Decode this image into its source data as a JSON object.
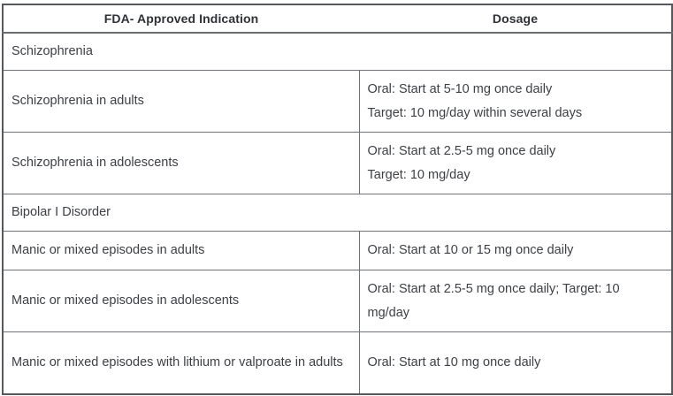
{
  "table": {
    "headers": [
      "FDA- Approved Indication",
      "Dosage"
    ],
    "rows": [
      {
        "type": "section",
        "indication": "Schizophrenia"
      },
      {
        "type": "detail",
        "indication": "Schizophrenia in adults",
        "dosage": [
          "Oral: Start at 5-10 mg once daily",
          "Target: 10 mg/day within several days"
        ]
      },
      {
        "type": "detail",
        "indication": "Schizophrenia in adolescents",
        "dosage": [
          "Oral: Start at 2.5-5 mg once daily",
          "Target: 10 mg/day"
        ]
      },
      {
        "type": "section",
        "indication": "Bipolar I Disorder"
      },
      {
        "type": "detail",
        "indication": "Manic or mixed episodes in adults",
        "dosage": [
          "Oral: Start at 10 or 15 mg once daily"
        ]
      },
      {
        "type": "detail",
        "indication": "Manic or mixed episodes in adolescents",
        "dosage": [
          "Oral: Start at 2.5-5 mg once daily; Target: 10 mg/day"
        ]
      },
      {
        "type": "detail",
        "indication": "Manic or mixed episodes with lithium or valproate in adults",
        "dosage": [
          "Oral: Start at 10 mg once daily"
        ]
      }
    ],
    "colors": {
      "border_outer": "#55585d",
      "border_inner": "#6f7277",
      "text": "#3d4045",
      "header_text": "#2e3135",
      "background": "#ffffff"
    }
  }
}
